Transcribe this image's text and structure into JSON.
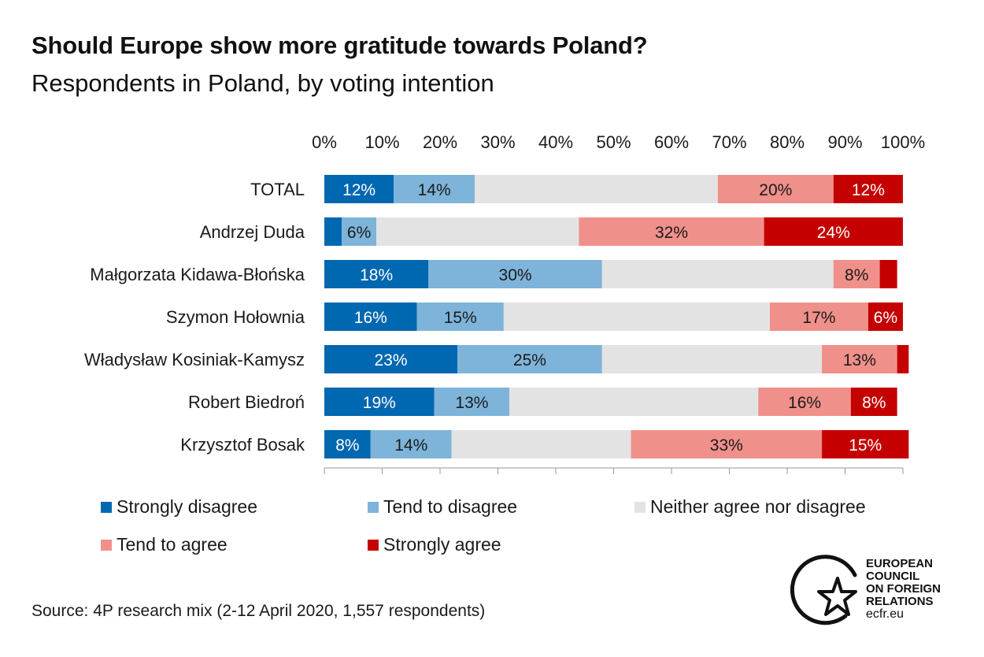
{
  "header": {
    "title": "Should Europe show more gratitude towards Poland?",
    "subtitle": "Respondents in Poland, by voting intention"
  },
  "chart_data": {
    "type": "bar",
    "orientation": "horizontal",
    "stacked": true,
    "title": "Should Europe show more gratitude towards Poland?",
    "subtitle": "Respondents in Poland, by voting intention",
    "xlim": [
      0,
      100
    ],
    "x_ticks": [
      "0%",
      "10%",
      "20%",
      "30%",
      "40%",
      "50%",
      "60%",
      "70%",
      "80%",
      "90%",
      "100%"
    ],
    "categories": [
      "TOTAL",
      "Andrzej Duda",
      "Małgorzata Kidawa-Błońska",
      "Szymon Hołownia",
      "Władysław Kosiniak-Kamysz",
      "Robert Biedroń",
      "Krzysztof Bosak"
    ],
    "series": [
      {
        "name": "Strongly disagree",
        "color": "#0067b1",
        "label_color": "#ffffff",
        "values": [
          12,
          3,
          18,
          16,
          23,
          19,
          8
        ],
        "labels": [
          "12%",
          "",
          "18%",
          "16%",
          "23%",
          "19%",
          "8%"
        ]
      },
      {
        "name": "Tend to disagree",
        "color": "#7eb4d9",
        "label_color": "#1a1a1a",
        "values": [
          14,
          6,
          30,
          15,
          25,
          13,
          14
        ],
        "labels": [
          "14%",
          "6%",
          "30%",
          "15%",
          "25%",
          "13%",
          "14%"
        ]
      },
      {
        "name": "Neither agree nor disagree",
        "color": "#e3e3e3",
        "label_color": "#1a1a1a",
        "values": [
          42,
          35,
          40,
          46,
          38,
          43,
          31
        ],
        "labels": [
          "",
          "",
          "",
          "",
          "",
          "",
          ""
        ]
      },
      {
        "name": "Tend to agree",
        "color": "#f0908a",
        "label_color": "#1a1a1a",
        "values": [
          20,
          32,
          8,
          17,
          13,
          16,
          33
        ],
        "labels": [
          "20%",
          "32%",
          "8%",
          "17%",
          "13%",
          "16%",
          "33%"
        ]
      },
      {
        "name": "Strongly agree",
        "color": "#c50000",
        "label_color": "#ffffff",
        "values": [
          12,
          24,
          3,
          6,
          2,
          8,
          15
        ],
        "labels": [
          "12%",
          "24%",
          "",
          "6%",
          "",
          "8%",
          "15%"
        ]
      }
    ],
    "legend": "bottom",
    "grid": false
  },
  "source": "Source: 4P research mix (2-12 April 2020, 1,557 respondents)",
  "logo": {
    "lines": [
      "EUROPEAN",
      "COUNCIL",
      "ON FOREIGN",
      "RELATIONS"
    ],
    "url": "ecfr.eu"
  }
}
